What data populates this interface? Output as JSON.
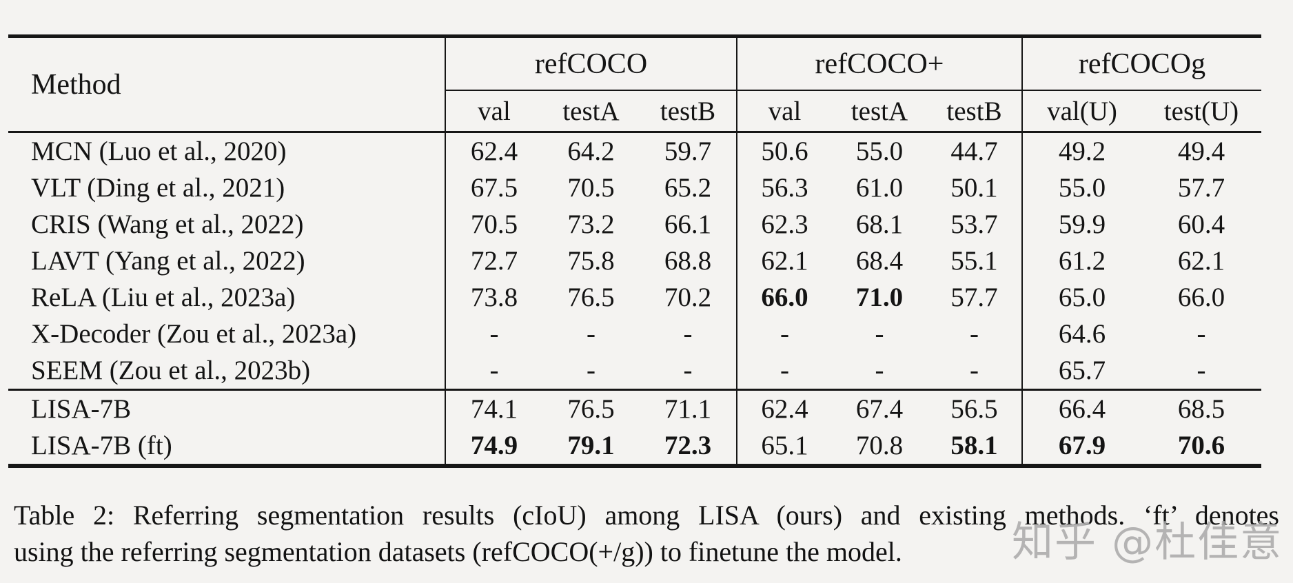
{
  "table": {
    "header": {
      "method": "Method",
      "groups": [
        {
          "label": "refCOCO",
          "subs": [
            "val",
            "testA",
            "testB"
          ]
        },
        {
          "label": "refCOCO+",
          "subs": [
            "val",
            "testA",
            "testB"
          ]
        },
        {
          "label": "refCOCOg",
          "subs": [
            "val(U)",
            "test(U)"
          ]
        }
      ]
    },
    "sections": [
      {
        "rows": [
          {
            "method": "MCN (Luo et al., 2020)",
            "values": [
              "62.4",
              "64.2",
              "59.7",
              "50.6",
              "55.0",
              "44.7",
              "49.2",
              "49.4"
            ],
            "bold": [
              0,
              0,
              0,
              0,
              0,
              0,
              0,
              0
            ]
          },
          {
            "method": "VLT (Ding et al., 2021)",
            "values": [
              "67.5",
              "70.5",
              "65.2",
              "56.3",
              "61.0",
              "50.1",
              "55.0",
              "57.7"
            ],
            "bold": [
              0,
              0,
              0,
              0,
              0,
              0,
              0,
              0
            ]
          },
          {
            "method": "CRIS (Wang et al., 2022)",
            "values": [
              "70.5",
              "73.2",
              "66.1",
              "62.3",
              "68.1",
              "53.7",
              "59.9",
              "60.4"
            ],
            "bold": [
              0,
              0,
              0,
              0,
              0,
              0,
              0,
              0
            ]
          },
          {
            "method": "LAVT (Yang et al., 2022)",
            "values": [
              "72.7",
              "75.8",
              "68.8",
              "62.1",
              "68.4",
              "55.1",
              "61.2",
              "62.1"
            ],
            "bold": [
              0,
              0,
              0,
              0,
              0,
              0,
              0,
              0
            ]
          },
          {
            "method": "ReLA (Liu et al., 2023a)",
            "values": [
              "73.8",
              "76.5",
              "70.2",
              "66.0",
              "71.0",
              "57.7",
              "65.0",
              "66.0"
            ],
            "bold": [
              0,
              0,
              0,
              1,
              1,
              0,
              0,
              0
            ]
          },
          {
            "method": "X-Decoder (Zou et al., 2023a)",
            "values": [
              "-",
              "-",
              "-",
              "-",
              "-",
              "-",
              "64.6",
              "-"
            ],
            "bold": [
              0,
              0,
              0,
              0,
              0,
              0,
              0,
              0
            ]
          },
          {
            "method": "SEEM (Zou et al., 2023b)",
            "values": [
              "-",
              "-",
              "-",
              "-",
              "-",
              "-",
              "65.7",
              "-"
            ],
            "bold": [
              0,
              0,
              0,
              0,
              0,
              0,
              0,
              0
            ]
          }
        ]
      },
      {
        "rows": [
          {
            "method": "LISA-7B",
            "values": [
              "74.1",
              "76.5",
              "71.1",
              "62.4",
              "67.4",
              "56.5",
              "66.4",
              "68.5"
            ],
            "bold": [
              0,
              0,
              0,
              0,
              0,
              0,
              0,
              0
            ]
          },
          {
            "method": "LISA-7B (ft)",
            "values": [
              "74.9",
              "79.1",
              "72.3",
              "65.1",
              "70.8",
              "58.1",
              "67.9",
              "70.6"
            ],
            "bold": [
              1,
              1,
              1,
              0,
              0,
              1,
              1,
              1
            ]
          }
        ]
      }
    ]
  },
  "caption": {
    "line1": "Table 2: Referring segmentation results (cIoU) among LISA (ours) and existing methods. ‘ft’ denotes",
    "line2": "using the referring segmentation datasets (refCOCO(+/g)) to finetune the model."
  },
  "watermark": {
    "text": "知乎 @杜佳意",
    "color": "#a9a9a9"
  }
}
